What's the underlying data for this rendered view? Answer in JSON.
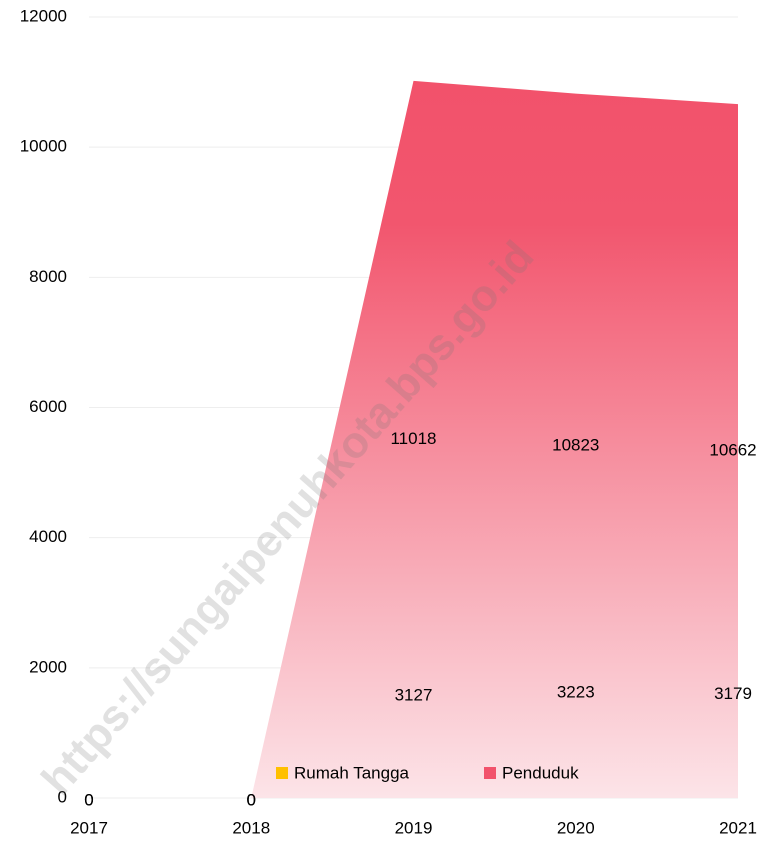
{
  "chart_data": {
    "type": "area",
    "categories": [
      "2017",
      "2018",
      "2019",
      "2020",
      "2021"
    ],
    "series": [
      {
        "name": "Rumah Tangga",
        "color": "#ffc000",
        "values": [
          0,
          0,
          3127,
          3223,
          3179
        ]
      },
      {
        "name": "Penduduk",
        "color": "#f2526b",
        "values": [
          0,
          0,
          11018,
          10823,
          10662
        ]
      }
    ],
    "ylim": [
      0,
      12000
    ],
    "yticks": [
      0,
      2000,
      4000,
      6000,
      8000,
      10000,
      12000
    ],
    "grid": true,
    "legend": "bottom",
    "watermark": "https://sungaipenuhkota.bps.go.id"
  }
}
